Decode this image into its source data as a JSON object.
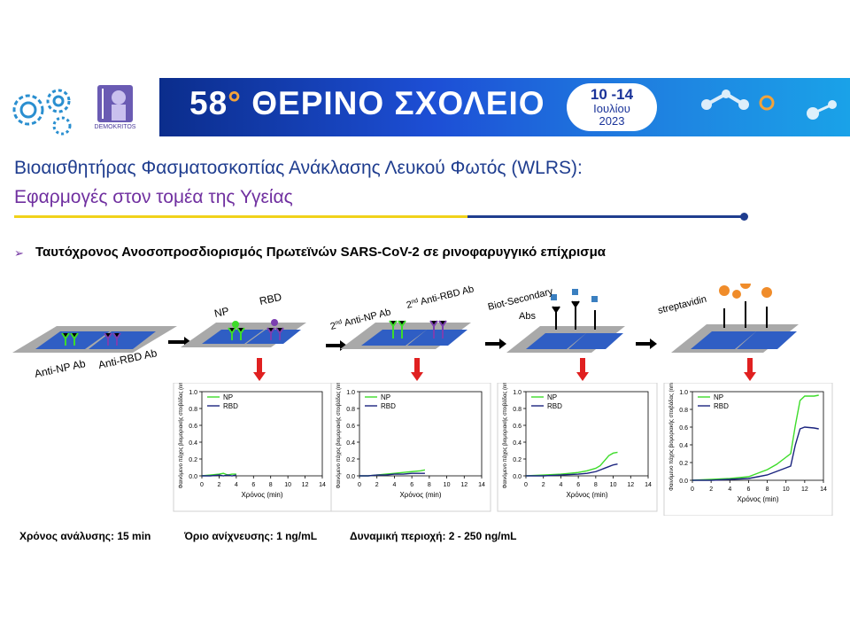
{
  "banner": {
    "number": "58",
    "degree": "°",
    "title": "ΘΕΡΙΝΟ ΣΧΟΛΕΙΟ",
    "dates": "10 -14",
    "month": "Ιουλίου",
    "year": "2023",
    "logo_caption": "DEMOKRITOS"
  },
  "title_line1": "Βιοαισθητήρας Φασματοσκοπίας Ανάκλασης Λευκού Φωτός (WLRS):",
  "title_line2": "Εφαρμογές στον τομέα της Υγείας",
  "subtitle": "Ταυτόχρονος Ανοσοπροσδιορισμός Πρωτεϊνών SARS-CoV-2 σε ρινοφαρυγγικό επίχρισμα",
  "bullet_symbol": "➢",
  "steps": {
    "s1a": "Anti-NP Ab",
    "s1b": "Anti-RBD Ab",
    "s2a": "NP",
    "s2b": "RBD",
    "s3a_pre": "2",
    "s3a_sup": "nd",
    "s3a_post": " Anti-NP Ab",
    "s3b_pre": "2",
    "s3b_sup": "nd",
    "s3b_post": " Anti-RBD Ab",
    "s4a": "Biot-Secondary",
    "s4b": "Abs",
    "s5": "streptavidin"
  },
  "footer": {
    "analysis_time": "Χρόνος ανάλυσης: 15 min",
    "detection_limit": "Όριο ανίχνευσης: 1 ng/mL",
    "dynamic_range": "Δυναμική περιοχή: 2 - 250 ng/mL"
  },
  "colors": {
    "np_series": "#3ddc2a",
    "rbd_series": "#1a237e",
    "arrow_red": "#e02020",
    "chip_blue": "#2f5ec4",
    "chip_gray": "#a9a9a9"
  },
  "chart_data": [
    {
      "type": "line",
      "xlabel": "Χρόνος (min)",
      "ylabel": "Φαινόμενο πάχος βιομοριακής στοιβάδας (nm)",
      "xlim": [
        0,
        14
      ],
      "ylim": [
        0,
        1.0
      ],
      "xticks": [
        "0",
        "2",
        "4",
        "6",
        "8",
        "10",
        "12",
        "14"
      ],
      "yticks": [
        "0.0",
        "0.2",
        "0.4",
        "0.6",
        "0.8",
        "1.0"
      ],
      "series": [
        {
          "name": "NP",
          "x": [
            0,
            1,
            2,
            2.5,
            3,
            3.5,
            4
          ],
          "y": [
            0,
            0.01,
            0.02,
            0.03,
            0.01,
            0.02,
            0.02
          ]
        },
        {
          "name": "RBD",
          "x": [
            0,
            1,
            2,
            2.5,
            3,
            3.5,
            4
          ],
          "y": [
            0,
            0.0,
            0.01,
            0.0,
            0.01,
            0.0,
            0.01
          ]
        }
      ]
    },
    {
      "type": "line",
      "xlabel": "Χρόνος (min)",
      "ylabel": "Φαινόμενο πάχος βιομοριακής στοιβάδας (nm)",
      "xlim": [
        0,
        14
      ],
      "ylim": [
        0,
        1.0
      ],
      "xticks": [
        "0",
        "2",
        "4",
        "6",
        "8",
        "10",
        "12",
        "14"
      ],
      "yticks": [
        "0.0",
        "0.2",
        "0.4",
        "0.6",
        "0.8",
        "1.0"
      ],
      "series": [
        {
          "name": "NP",
          "x": [
            0,
            1,
            2,
            3,
            4,
            5,
            6,
            7,
            7.5
          ],
          "y": [
            0,
            0.0,
            0.01,
            0.02,
            0.03,
            0.04,
            0.05,
            0.06,
            0.07
          ]
        },
        {
          "name": "RBD",
          "x": [
            0,
            1,
            2,
            3,
            4,
            5,
            6,
            7,
            7.5
          ],
          "y": [
            0,
            0.0,
            0.01,
            0.01,
            0.02,
            0.02,
            0.03,
            0.03,
            0.03
          ]
        }
      ]
    },
    {
      "type": "line",
      "xlabel": "Χρόνος (min)",
      "ylabel": "Φαινόμενο πάχος βιομοριακής στοιβάδας (nm)",
      "xlim": [
        0,
        14
      ],
      "ylim": [
        0,
        1.0
      ],
      "xticks": [
        "0",
        "2",
        "4",
        "6",
        "8",
        "10",
        "12",
        "14"
      ],
      "yticks": [
        "0.0",
        "0.2",
        "0.4",
        "0.6",
        "0.8",
        "1.0"
      ],
      "series": [
        {
          "name": "NP",
          "x": [
            0,
            2,
            4,
            6,
            7,
            8,
            8.5,
            9,
            9.5,
            10,
            10.5
          ],
          "y": [
            0,
            0.01,
            0.02,
            0.04,
            0.06,
            0.09,
            0.12,
            0.18,
            0.24,
            0.27,
            0.28
          ]
        },
        {
          "name": "RBD",
          "x": [
            0,
            2,
            4,
            6,
            7,
            8,
            8.5,
            9,
            9.5,
            10,
            10.5
          ],
          "y": [
            0,
            0.0,
            0.01,
            0.02,
            0.03,
            0.05,
            0.07,
            0.09,
            0.11,
            0.13,
            0.14
          ]
        }
      ]
    },
    {
      "type": "line",
      "xlabel": "Χρόνος (min)",
      "ylabel": "Φαινόμενο πάχος βιομοριακής στοιβάδας (nm)",
      "xlim": [
        0,
        14
      ],
      "ylim": [
        0,
        1.0
      ],
      "xticks": [
        "0",
        "2",
        "4",
        "6",
        "8",
        "10",
        "12",
        "14"
      ],
      "yticks": [
        "0.0",
        "0.2",
        "0.4",
        "0.6",
        "0.8",
        "1.0"
      ],
      "series": [
        {
          "name": "NP",
          "x": [
            0,
            2,
            4,
            6,
            7,
            8,
            9,
            10,
            10.5,
            11,
            11.5,
            12,
            13,
            13.5
          ],
          "y": [
            0,
            0.01,
            0.02,
            0.04,
            0.08,
            0.12,
            0.18,
            0.26,
            0.3,
            0.62,
            0.9,
            0.95,
            0.95,
            0.96
          ]
        },
        {
          "name": "RBD",
          "x": [
            0,
            2,
            4,
            6,
            7,
            8,
            9,
            10,
            10.5,
            11,
            11.5,
            12,
            13,
            13.5
          ],
          "y": [
            0,
            0.0,
            0.01,
            0.02,
            0.04,
            0.06,
            0.1,
            0.14,
            0.16,
            0.4,
            0.58,
            0.6,
            0.59,
            0.58
          ]
        }
      ]
    }
  ]
}
